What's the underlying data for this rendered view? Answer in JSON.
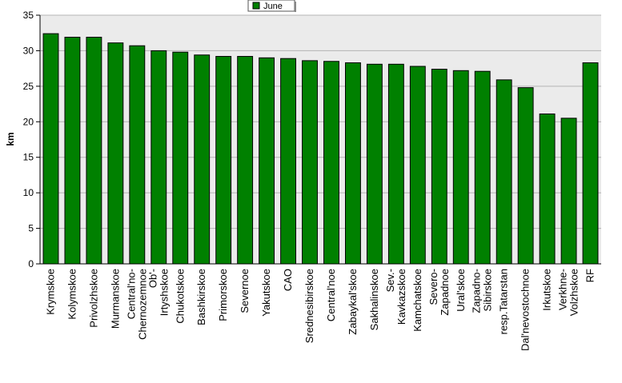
{
  "chart_data": {
    "type": "bar",
    "title": "",
    "xlabel": "",
    "ylabel": "km",
    "ylim": [
      0,
      35
    ],
    "yticks": [
      0,
      5,
      10,
      15,
      20,
      25,
      30,
      35
    ],
    "grid": true,
    "legend_position": "top-center",
    "colors": {
      "bar": "#008000",
      "bar_edge": "#000000",
      "plot_bg": "#ebebeb",
      "grid": "#b4b4b4"
    },
    "categories": [
      "Krymskoe",
      "Kolymskoe",
      "Privolzhskoe",
      "Murmanskoe",
      "Central'no-Chernozemnoe",
      "Ob'-Irtyshskoe",
      "Chukotskoe",
      "Bashkirskoe",
      "Primorskoe",
      "Severnoe",
      "Yakutskoe",
      "CAO",
      "Srednesibirskoe",
      "Central'noe",
      "Zabaykal'skoe",
      "Sakhalinskoe",
      "Sev.-Kavkazskoe",
      "Kamchatskoe",
      "Severo-Zapadnoe",
      "Ural'skoe",
      "Zapadno-Sibirskoe",
      "resp.Tatarstan",
      "Dal'nevostochnoe",
      "Irkutskoe",
      "Verkhne-Volzhskoe",
      "RF"
    ],
    "category_lines": [
      [
        "Krymskoe"
      ],
      [
        "Kolymskoe"
      ],
      [
        "Privolzhskoe"
      ],
      [
        "Murmanskoe"
      ],
      [
        "Central'no-",
        "Chernozemnoe"
      ],
      [
        "Ob'-",
        "Irtyshskoe"
      ],
      [
        "Chukotskoe"
      ],
      [
        "Bashkirskoe"
      ],
      [
        "Primorskoe"
      ],
      [
        "Severnoe"
      ],
      [
        "Yakutskoe"
      ],
      [
        "CAO"
      ],
      [
        "Srednesibirskoe"
      ],
      [
        "Central'noe"
      ],
      [
        "Zabaykal'skoe"
      ],
      [
        "Sakhalinskoe"
      ],
      [
        "Sev.-",
        "Kavkazskoe"
      ],
      [
        "Kamchatskoe"
      ],
      [
        "Severo-",
        "Zapadnoe"
      ],
      [
        "Ural'skoe"
      ],
      [
        "Zapadno-",
        "Sibirskoe"
      ],
      [
        "resp.Tatarstan"
      ],
      [
        "Dal'nevostochnoe"
      ],
      [
        "Irkutskoe"
      ],
      [
        "Verkhne-",
        "Volzhskoe"
      ],
      [
        "RF"
      ]
    ],
    "series": [
      {
        "name": "June",
        "values": [
          32.4,
          31.9,
          31.9,
          31.1,
          30.7,
          30.0,
          29.8,
          29.4,
          29.2,
          29.2,
          29.0,
          28.9,
          28.6,
          28.5,
          28.3,
          28.1,
          28.1,
          27.8,
          27.4,
          27.2,
          27.1,
          25.9,
          24.8,
          21.1,
          20.5,
          28.3
        ]
      }
    ]
  }
}
